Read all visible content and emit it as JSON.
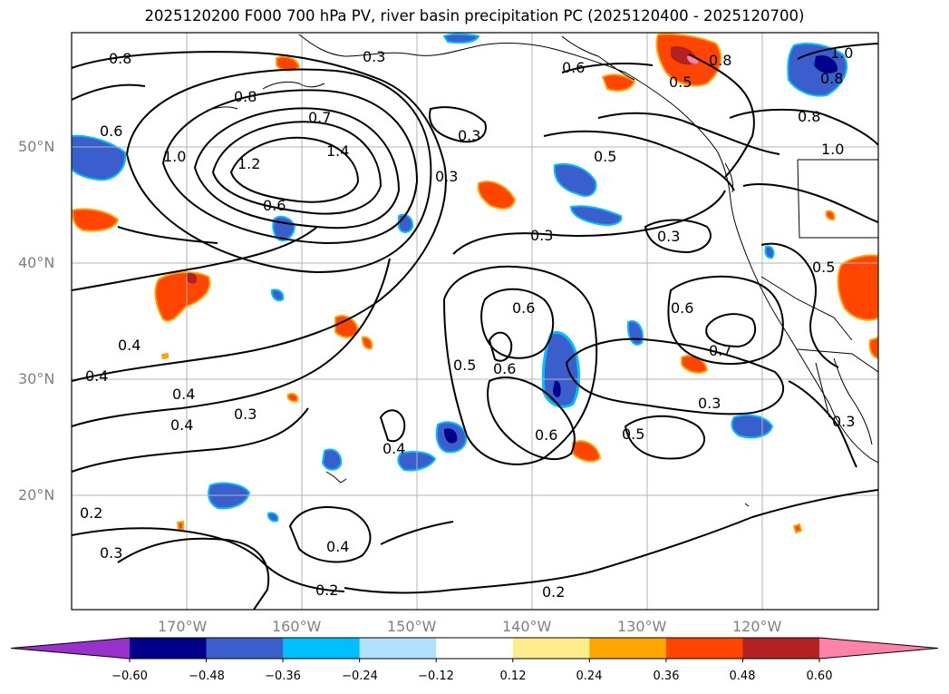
{
  "title": "2025120200 F000 700 hPa PV, river basin precipitation PC (2025120400 - 2025120700)",
  "lat_labels": [
    "50°N",
    "40°N",
    "30°N",
    "20°N"
  ],
  "lon_labels": [
    "170°W",
    "160°W",
    "150°W",
    "140°W",
    "130°W",
    "120°W"
  ],
  "colorbar": {
    "ticks": [
      "−0.60",
      "−0.48",
      "−0.36",
      "−0.24",
      "−0.12",
      "0.12",
      "0.24",
      "0.36",
      "0.48",
      "0.60"
    ],
    "colors": [
      "#9932cc",
      "#00008b",
      "#3a5fcd",
      "#00bfff",
      "#b0e2ff",
      "#ffffff",
      "#ffec8b",
      "#ffa500",
      "#ff4500",
      "#b22222",
      "#ff83a8"
    ]
  },
  "contour_labels": [
    "0.8",
    "0.6",
    "0.8",
    "0.7",
    "1.4",
    "1.0",
    "1.2",
    "0.6",
    "0.3",
    "0.3",
    "0.5",
    "0.3",
    "0.3",
    "0.6",
    "0.6",
    "0.7",
    "0.5",
    "0.5",
    "0.6",
    "0.4",
    "0.4",
    "0.4",
    "0.4",
    "0.3",
    "0.4",
    "0.2",
    "0.3",
    "0.4",
    "0.2",
    "0.2",
    "0.3",
    "0.5",
    "0.8",
    "1.0",
    "0.8",
    "1.0",
    "0.5",
    "0.3",
    "0.8",
    "0.6",
    "0.3",
    "0.6"
  ]
}
